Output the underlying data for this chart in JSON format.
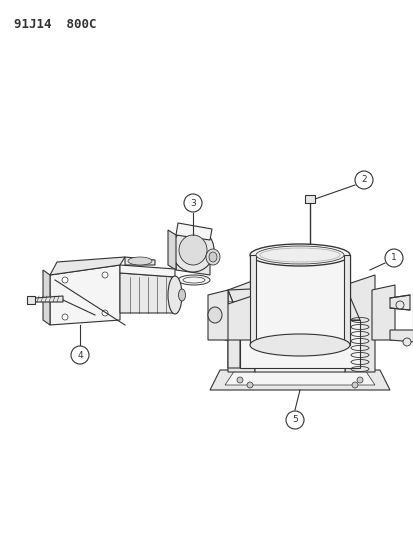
{
  "title": "91J14  800C",
  "bg_color": "#ffffff",
  "lc": "#333333",
  "title_fontsize": 9,
  "fig_width": 4.14,
  "fig_height": 5.33
}
